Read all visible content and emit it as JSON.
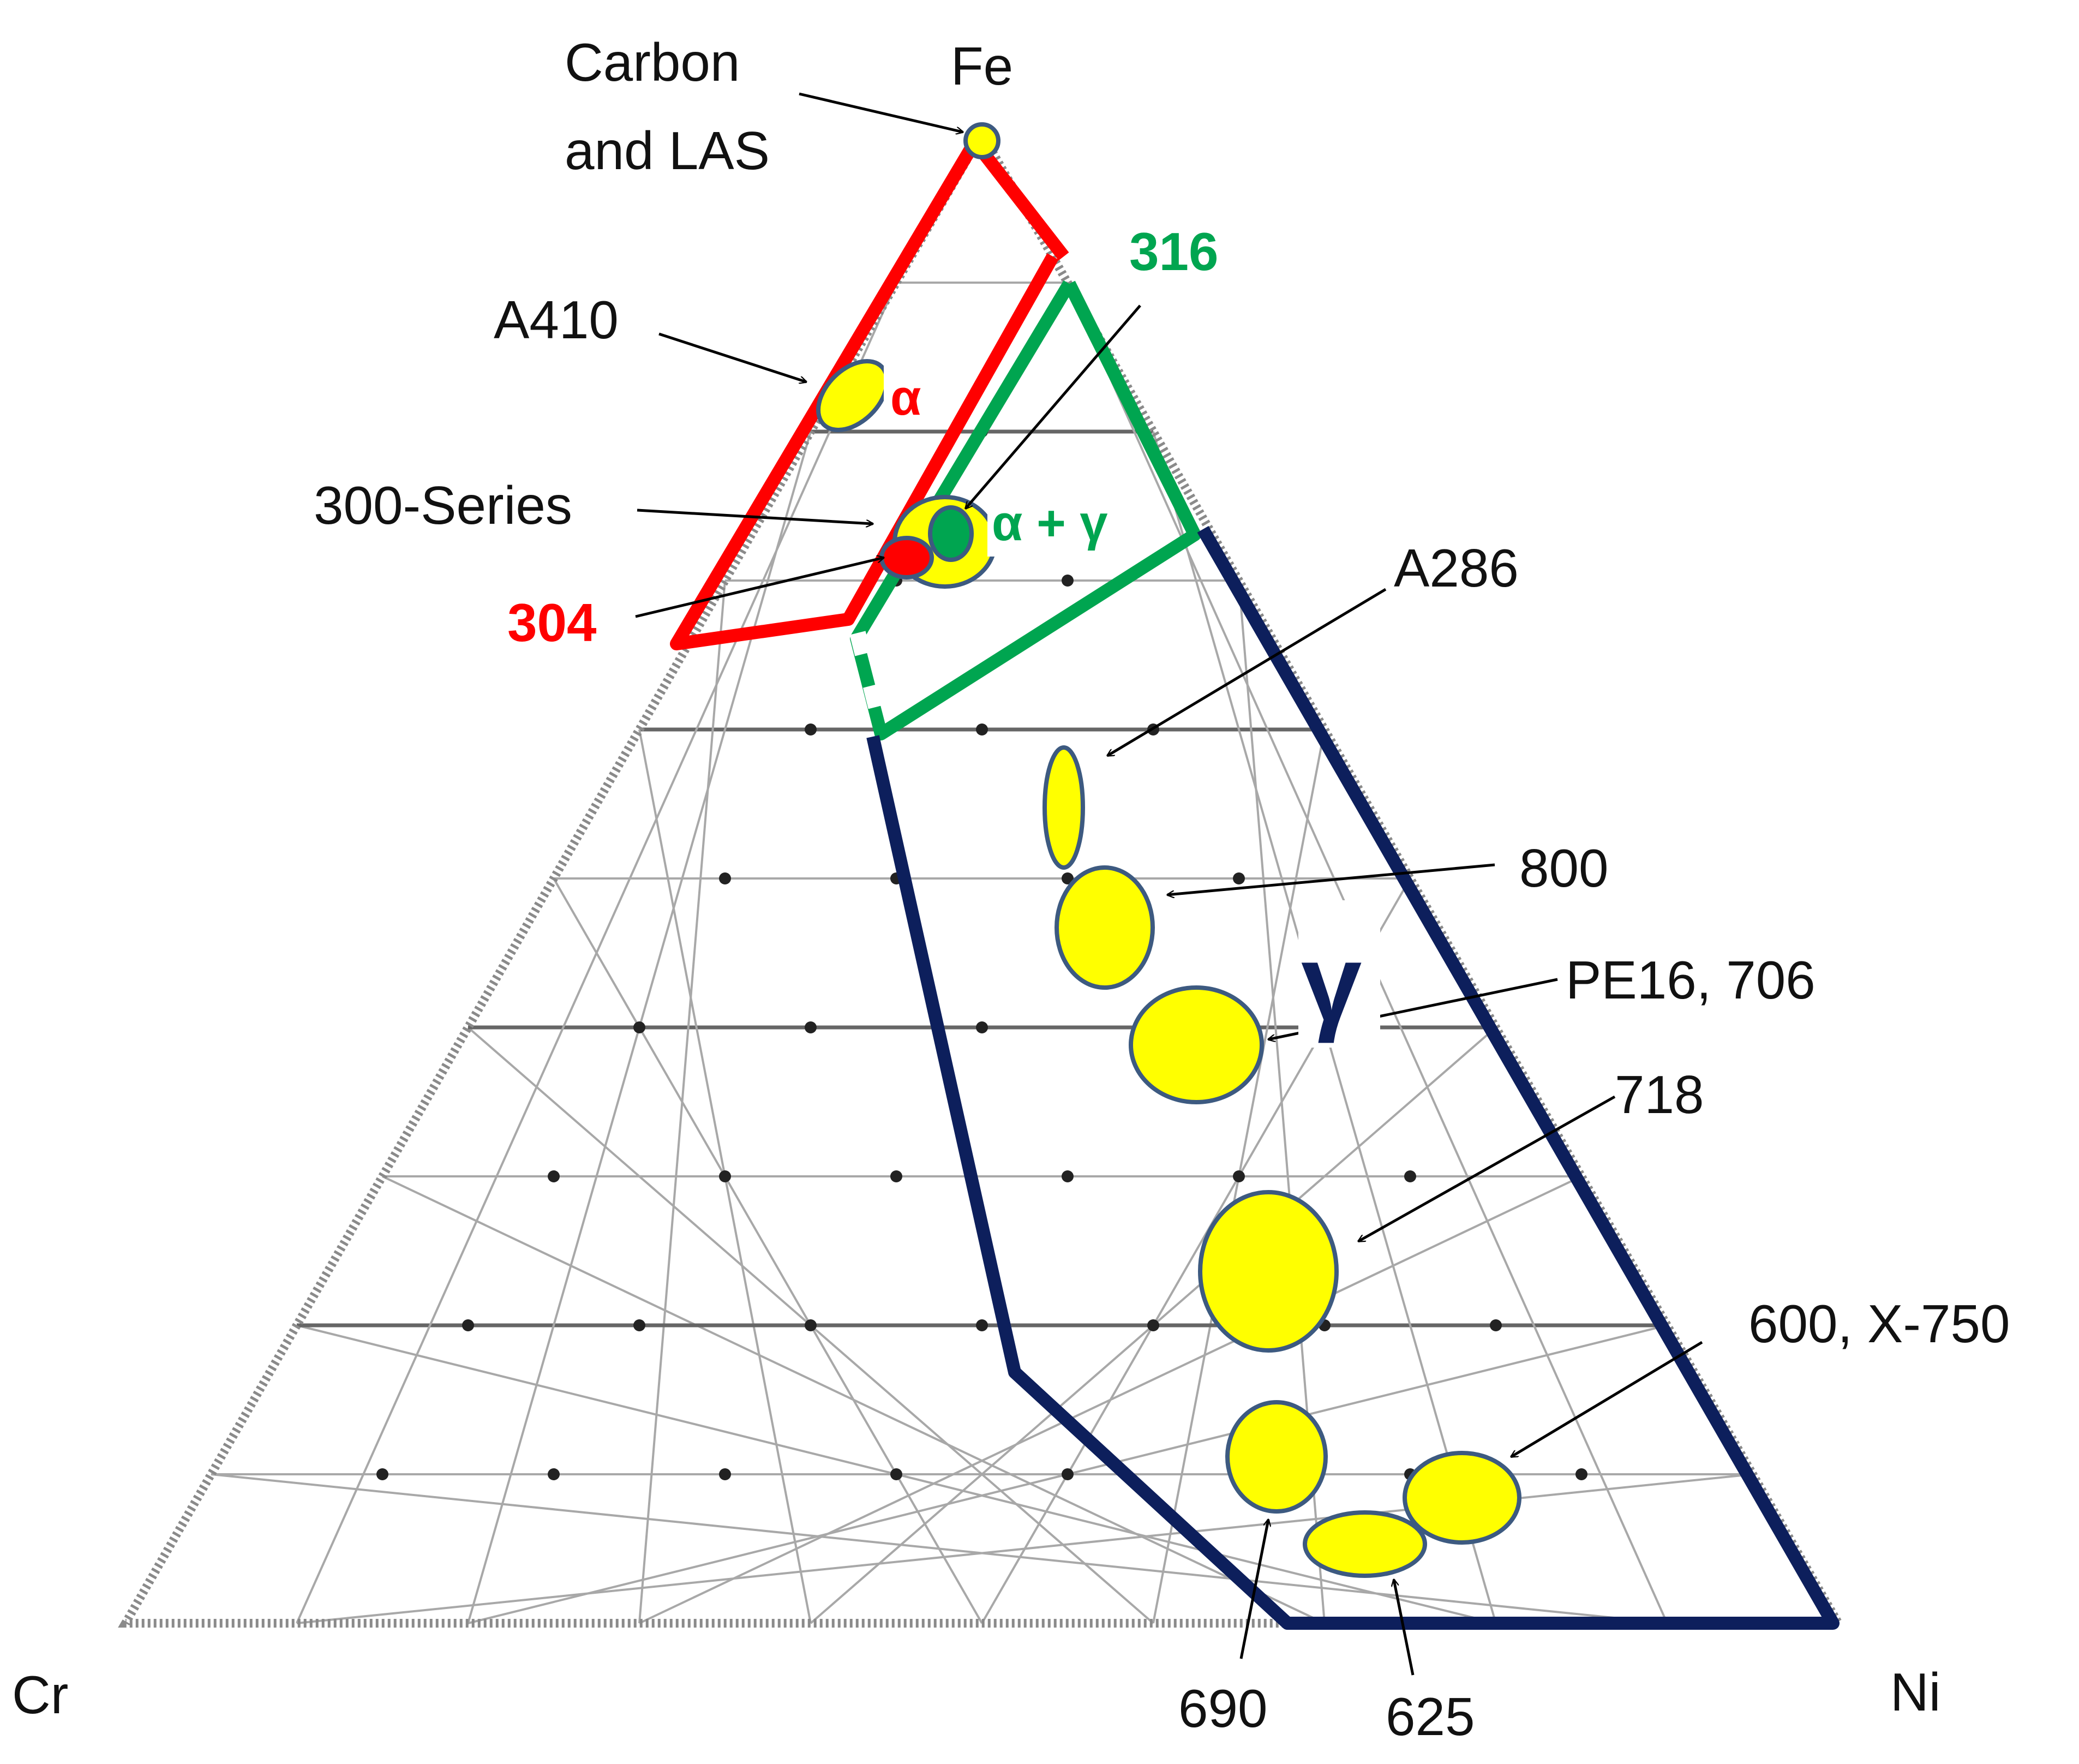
{
  "vertices": {
    "top": "Fe",
    "left": "Cr",
    "right": "Ni"
  },
  "phase_labels": {
    "alpha": "α",
    "alpha_gamma": "α + γ",
    "gamma": "γ"
  },
  "alloy_labels": {
    "carbon_las_line1": "Carbon",
    "carbon_las_line2": "and LAS",
    "a410": "A410",
    "series300": "300-Series",
    "s304": "304",
    "s316": "316",
    "a286": "A286",
    "a800": "800",
    "pe16_706": "PE16, 706",
    "a718": "718",
    "a600_x750": "600, X-750",
    "a690": "690",
    "a625": "625"
  },
  "colors": {
    "alpha_region": "#ff0000",
    "alpha_gamma_region": "#00a550",
    "gamma_region": "#0d1f5c",
    "alloy_fill": "#ffff00",
    "alloy_outline": "#3d5a80",
    "grid": "#9a9a9a"
  }
}
